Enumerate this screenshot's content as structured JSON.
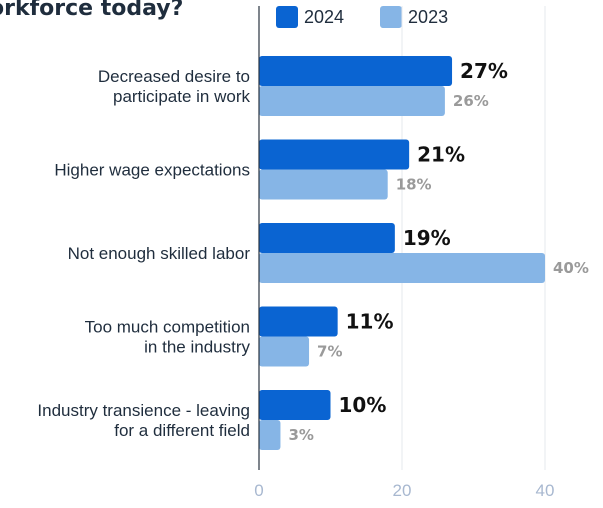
{
  "title": "orkforce today?",
  "legend": [
    {
      "name": "2024",
      "color": "#0a64d2"
    },
    {
      "name": "2023",
      "color": "#86b5e6"
    }
  ],
  "chart_data": {
    "type": "bar",
    "orientation": "horizontal",
    "title": "orkforce today?",
    "categories": [
      [
        "Decreased desire to",
        "participate in work"
      ],
      [
        "Higher wage expectations"
      ],
      [
        "Not enough skilled labor"
      ],
      [
        "Too much competition",
        "in the industry"
      ],
      [
        "Industry transience - leaving",
        "for a different field"
      ]
    ],
    "series": [
      {
        "name": "2024",
        "color": "#0a64d2",
        "values": [
          27,
          21,
          19,
          11,
          10
        ],
        "labels": [
          "27%",
          "21%",
          "19%",
          "11%",
          "10%"
        ]
      },
      {
        "name": "2023",
        "color": "#86b5e6",
        "values": [
          26,
          18,
          40,
          7,
          3
        ],
        "labels": [
          "26%",
          "18%",
          "40%",
          "7%",
          "3%"
        ]
      }
    ],
    "xlim": [
      0,
      40
    ],
    "x_ticks": [
      0,
      20,
      40
    ],
    "grid": true,
    "legend_position": "top"
  }
}
